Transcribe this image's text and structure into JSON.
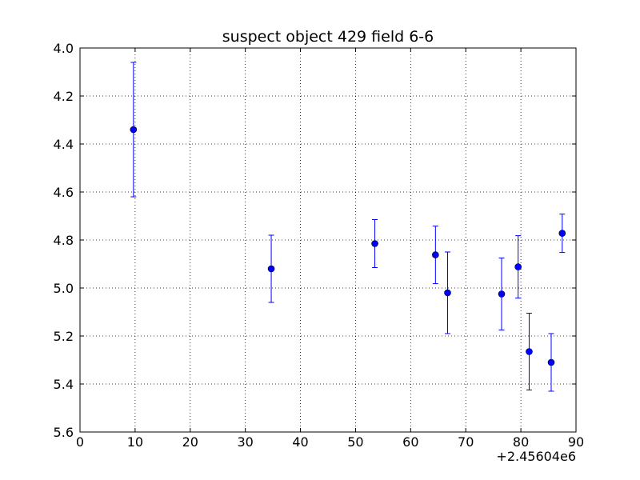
{
  "chart_data": {
    "type": "scatter",
    "title": "suspect object 429 field 6-6",
    "xlabel": "",
    "ylabel": "",
    "x_offset_label": "+2.45604e6",
    "xlim": [
      0,
      90
    ],
    "ylim": [
      4.0,
      5.6
    ],
    "y_inverted": true,
    "grid": true,
    "x_ticks": [
      0,
      10,
      20,
      30,
      40,
      50,
      60,
      70,
      80,
      90
    ],
    "x_tick_labels": [
      "0",
      "10",
      "20",
      "30",
      "40",
      "50",
      "60",
      "70",
      "80",
      "90"
    ],
    "y_ticks": [
      4.0,
      4.2,
      4.4,
      4.6,
      4.8,
      5.0,
      5.2,
      5.4,
      5.6
    ],
    "y_tick_labels": [
      "4.0",
      "4.2",
      "4.4",
      "4.6",
      "4.8",
      "5.0",
      "5.2",
      "5.4",
      "5.6"
    ],
    "marker_color": "#0000ff",
    "points": [
      {
        "x": 2456049.7,
        "y": 4.34,
        "err": 0.28
      },
      {
        "x": 2456074.7,
        "y": 4.92,
        "err": 0.14
      },
      {
        "x": 2456093.5,
        "y": 4.815,
        "err": 0.1
      },
      {
        "x": 2456104.5,
        "y": 4.862,
        "err": 0.12
      },
      {
        "x": 2456106.7,
        "y": 5.02,
        "err": 0.17
      },
      {
        "x": 2456116.5,
        "y": 5.025,
        "err": 0.15
      },
      {
        "x": 2456119.5,
        "y": 4.912,
        "err": 0.13
      },
      {
        "x": 2456121.5,
        "y": 5.265,
        "err": 0.16
      },
      {
        "x": 2456125.5,
        "y": 5.31,
        "err": 0.12
      },
      {
        "x": 2456127.5,
        "y": 4.772,
        "err": 0.08
      }
    ]
  }
}
